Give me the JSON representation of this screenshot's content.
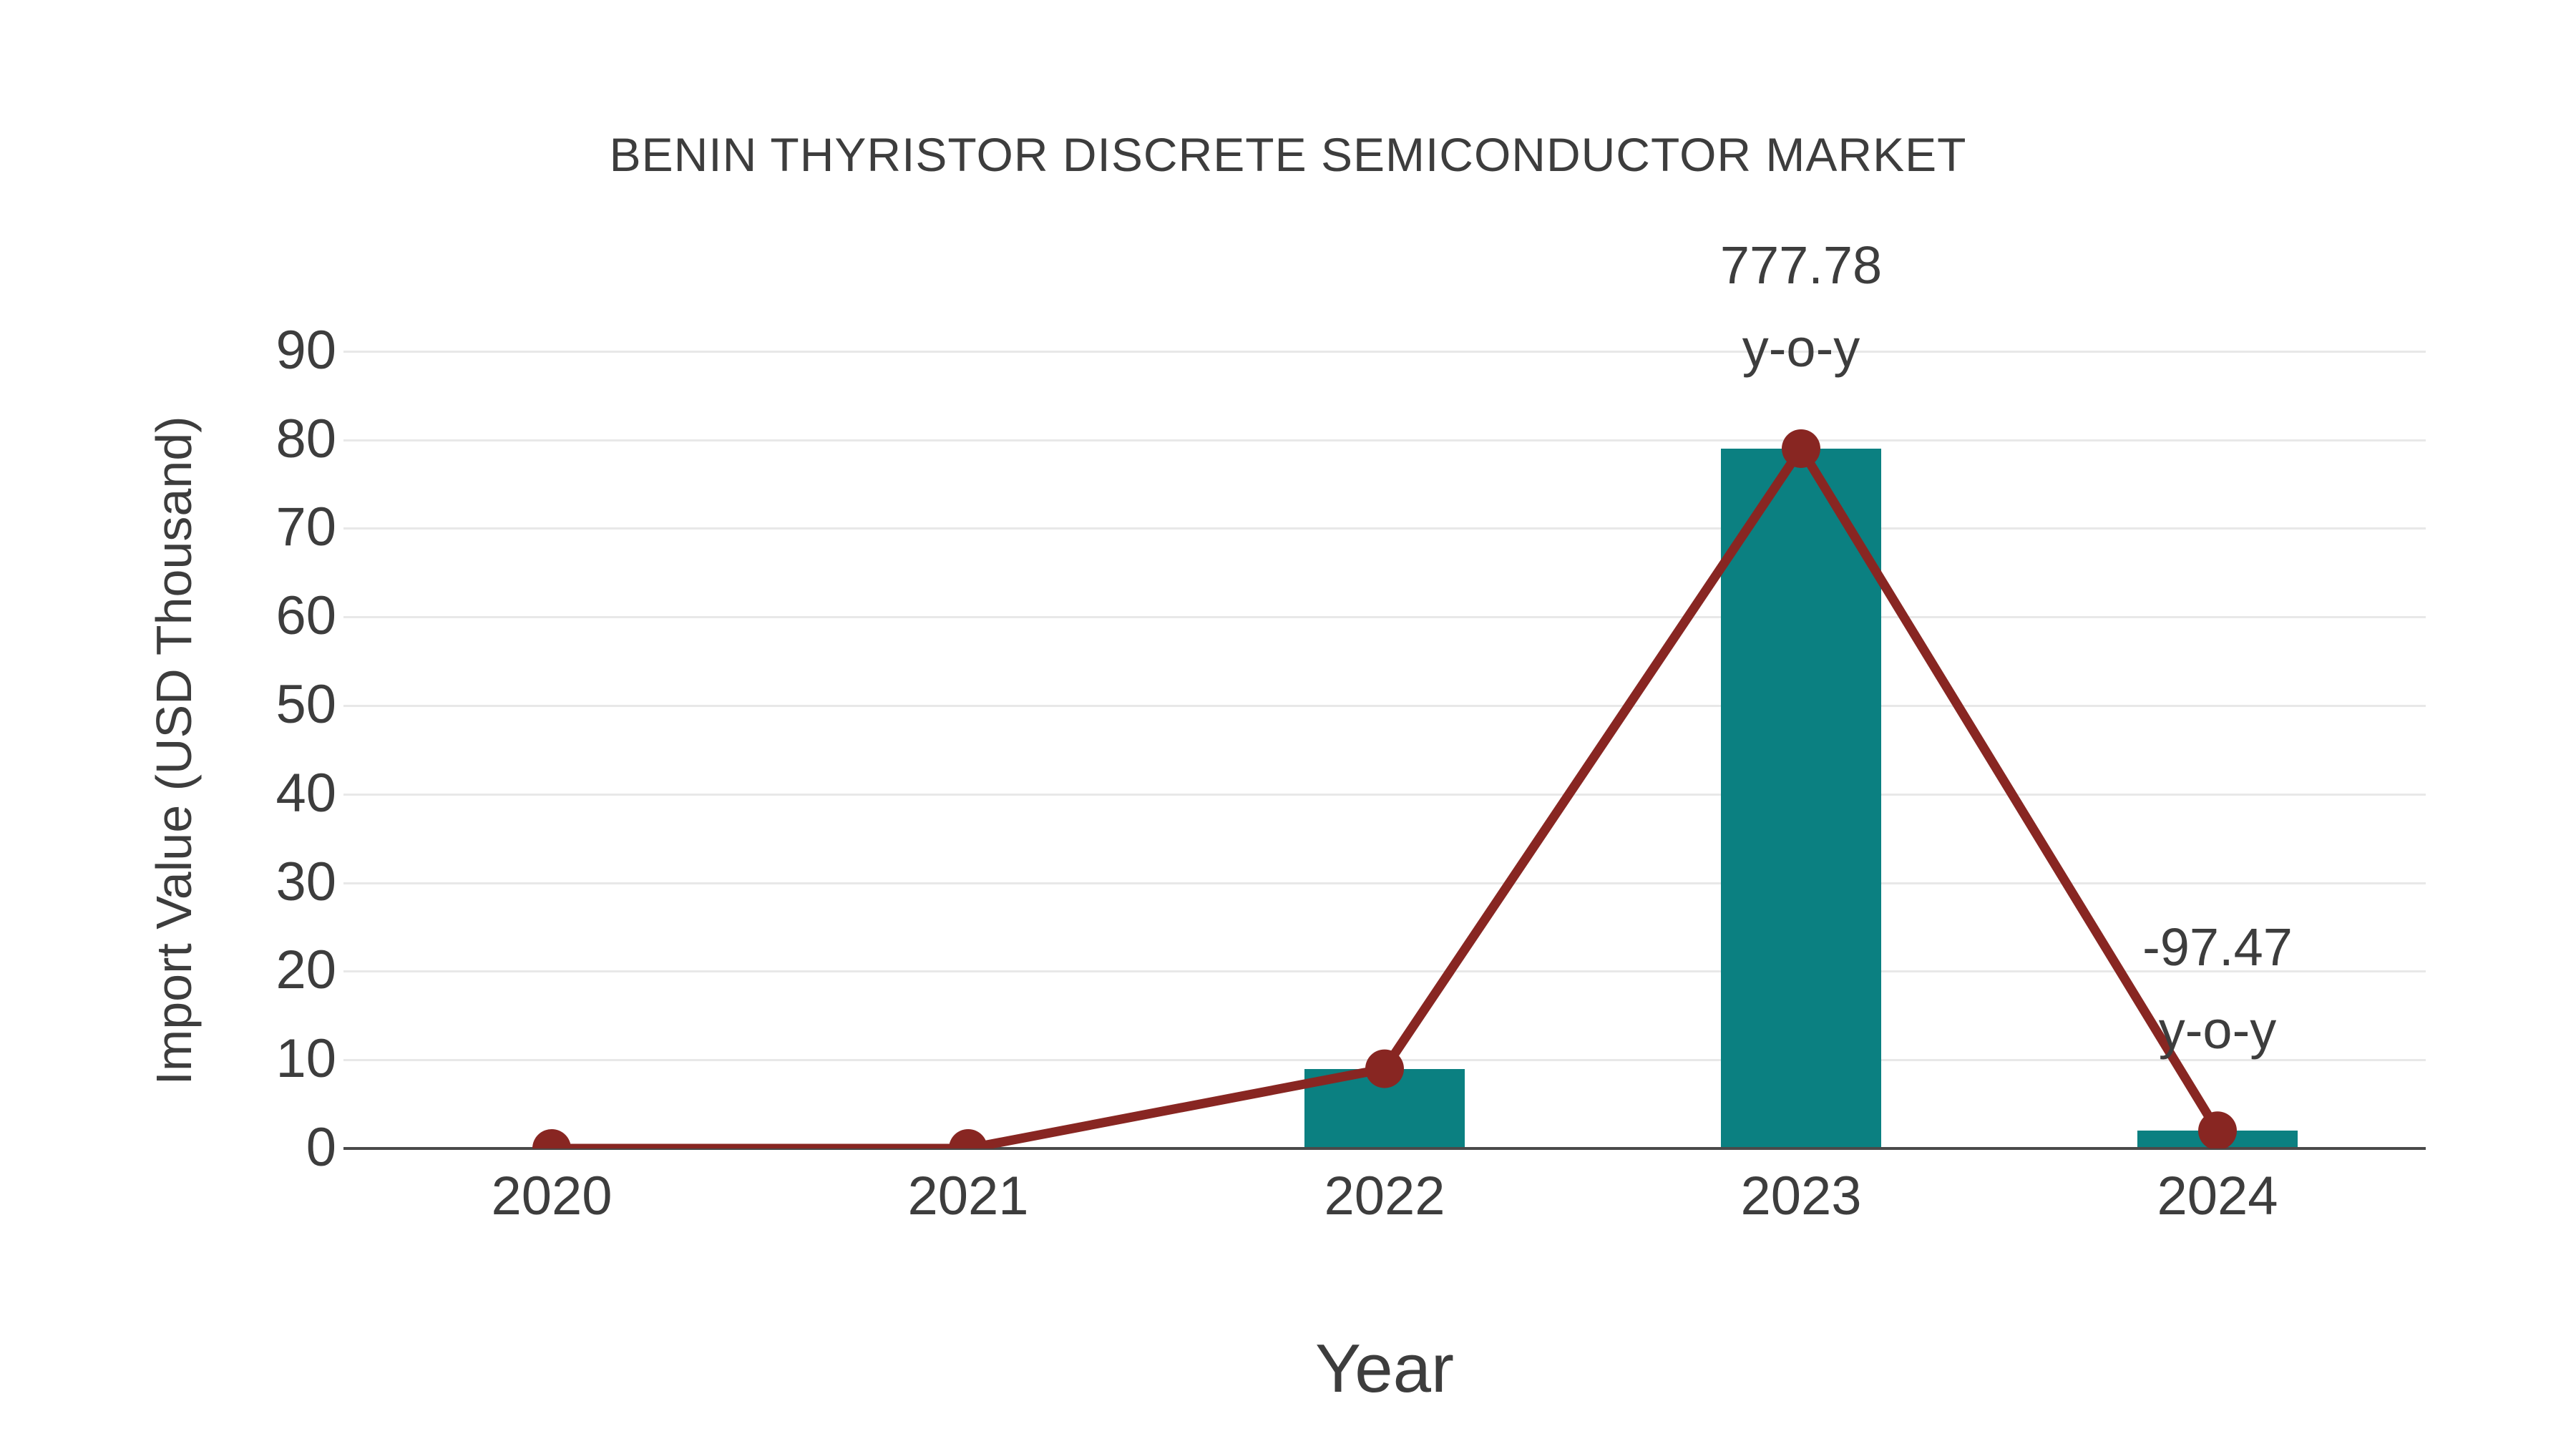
{
  "chart_data": {
    "type": "bar",
    "subtype": "bar-with-line-overlay",
    "title": "BENIN THYRISTOR DISCRETE SEMICONDUCTOR MARKET",
    "xlabel": "Year",
    "ylabel": "Import Value (USD Thousand)",
    "categories": [
      "2020",
      "2021",
      "2022",
      "2023",
      "2024"
    ],
    "series": [
      {
        "name": "Import Value (bar)",
        "type": "bar",
        "values": [
          0,
          0,
          9,
          79,
          2
        ],
        "color": "#0b8081"
      },
      {
        "name": "Import Value (trend line)",
        "type": "line",
        "values": [
          0,
          0,
          9,
          79,
          2
        ],
        "color": "#882622",
        "marker": "circle"
      }
    ],
    "annotations": [
      {
        "category": "2023",
        "lines": [
          "777.78",
          "y-o-y"
        ]
      },
      {
        "category": "2024",
        "lines": [
          "-97.47",
          "y-o-y"
        ]
      }
    ],
    "yticks": [
      0,
      10,
      20,
      30,
      40,
      50,
      60,
      70,
      80,
      90
    ],
    "ylim": [
      0,
      95.8
    ],
    "grid": "horizontal",
    "legend": "none",
    "colors": {
      "background": "#ffffff",
      "bar": "#0b8081",
      "line": "#882622",
      "text": "#3d3d3d",
      "gridline": "#e8e8e8",
      "axis_line": "#4a4a4a"
    }
  }
}
